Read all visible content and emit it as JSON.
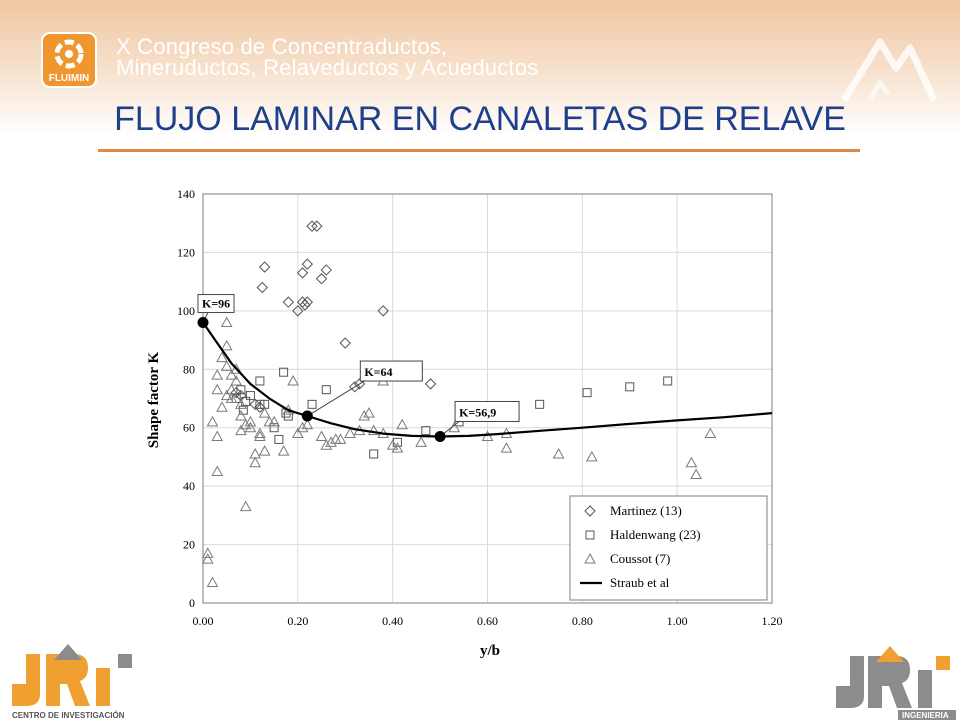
{
  "header": {
    "conference_line1": "X Congreso de Concentraductos,",
    "conference_line2": "Mineruductos, Relaveductos y Acueductos",
    "fluimin_logo_text": "FLUIMIN"
  },
  "slide": {
    "title": "FLUJO LAMINAR EN CANALETAS DE RELAVE"
  },
  "footer": {
    "left_logo_text": "JRI",
    "left_logo_caption": "CENTRO DE INVESTIGACIÓN",
    "right_logo_text": "JRI",
    "right_logo_caption": "INGENIERIA"
  },
  "colors": {
    "title": "#1d3f8c",
    "accent_orange": "#e08a46",
    "fluimin_orange": "#f0962e",
    "jri_orange": "#f0a030",
    "jri_gray": "#8c8c8c",
    "markers": "#555555"
  },
  "chart_data": {
    "type": "scatter",
    "xlabel": "y/b",
    "ylabel": "Shape factor K",
    "xlim": [
      0,
      1.2
    ],
    "ylim": [
      0,
      140
    ],
    "xticks": [
      "0.00",
      "0.20",
      "0.40",
      "0.60",
      "0.80",
      "1.00",
      "1.20"
    ],
    "yticks": [
      "0",
      "20",
      "40",
      "60",
      "80",
      "100",
      "120",
      "140"
    ],
    "grid": true,
    "legend_position": "bottom-right",
    "series": [
      {
        "name": "Martinez (13)",
        "marker": "diamond",
        "points": [
          [
            0.13,
            115
          ],
          [
            0.125,
            108
          ],
          [
            0.18,
            103
          ],
          [
            0.2,
            100
          ],
          [
            0.21,
            103
          ],
          [
            0.215,
            102
          ],
          [
            0.22,
            103
          ],
          [
            0.21,
            113
          ],
          [
            0.22,
            116
          ],
          [
            0.23,
            129
          ],
          [
            0.24,
            129
          ],
          [
            0.25,
            111
          ],
          [
            0.26,
            114
          ],
          [
            0.3,
            89
          ],
          [
            0.32,
            74
          ],
          [
            0.33,
            75
          ],
          [
            0.38,
            100
          ],
          [
            0.48,
            75
          ],
          [
            0.07,
            72
          ],
          [
            0.08,
            71
          ],
          [
            0.11,
            68
          ],
          [
            0.12,
            67
          ]
        ]
      },
      {
        "name": "Haldenwang (23)",
        "marker": "square",
        "points": [
          [
            0.07,
            70
          ],
          [
            0.08,
            73
          ],
          [
            0.085,
            66
          ],
          [
            0.09,
            69
          ],
          [
            0.1,
            71
          ],
          [
            0.12,
            76
          ],
          [
            0.12,
            68
          ],
          [
            0.13,
            68
          ],
          [
            0.15,
            60
          ],
          [
            0.16,
            56
          ],
          [
            0.17,
            79
          ],
          [
            0.175,
            65
          ],
          [
            0.18,
            64
          ],
          [
            0.23,
            68
          ],
          [
            0.26,
            73
          ],
          [
            0.36,
            51
          ],
          [
            0.41,
            55
          ],
          [
            0.47,
            59
          ],
          [
            0.54,
            62
          ],
          [
            0.6,
            64
          ],
          [
            0.71,
            68
          ],
          [
            0.81,
            72
          ],
          [
            0.9,
            74
          ],
          [
            0.98,
            76
          ]
        ]
      },
      {
        "name": "Coussot (7)",
        "marker": "triangle",
        "points": [
          [
            0.01,
            17
          ],
          [
            0.01,
            15
          ],
          [
            0.02,
            7
          ],
          [
            0.03,
            45
          ],
          [
            0.03,
            57
          ],
          [
            0.02,
            62
          ],
          [
            0.03,
            73
          ],
          [
            0.03,
            78
          ],
          [
            0.04,
            84
          ],
          [
            0.05,
            96
          ],
          [
            0.05,
            88
          ],
          [
            0.05,
            81
          ],
          [
            0.06,
            78
          ],
          [
            0.06,
            70
          ],
          [
            0.07,
            76
          ],
          [
            0.08,
            64
          ],
          [
            0.08,
            59
          ],
          [
            0.09,
            61
          ],
          [
            0.09,
            33
          ],
          [
            0.1,
            60
          ],
          [
            0.11,
            48
          ],
          [
            0.11,
            51
          ],
          [
            0.12,
            57
          ],
          [
            0.13,
            52
          ],
          [
            0.13,
            65
          ],
          [
            0.14,
            62
          ],
          [
            0.15,
            62
          ],
          [
            0.17,
            52
          ],
          [
            0.18,
            66
          ],
          [
            0.19,
            76
          ],
          [
            0.2,
            58
          ],
          [
            0.21,
            60
          ],
          [
            0.22,
            61
          ],
          [
            0.25,
            57
          ],
          [
            0.26,
            54
          ],
          [
            0.27,
            55
          ],
          [
            0.28,
            56
          ],
          [
            0.29,
            56
          ],
          [
            0.31,
            58
          ],
          [
            0.33,
            59
          ],
          [
            0.34,
            64
          ],
          [
            0.35,
            65
          ],
          [
            0.36,
            59
          ],
          [
            0.38,
            58
          ],
          [
            0.38,
            76
          ],
          [
            0.4,
            54
          ],
          [
            0.41,
            53
          ],
          [
            0.42,
            61
          ],
          [
            0.46,
            55
          ],
          [
            0.53,
            60
          ],
          [
            0.6,
            57
          ],
          [
            0.64,
            53
          ],
          [
            0.64,
            58
          ],
          [
            0.75,
            51
          ],
          [
            0.82,
            50
          ],
          [
            1.03,
            48
          ],
          [
            1.04,
            44
          ],
          [
            1.07,
            58
          ],
          [
            0.04,
            67
          ],
          [
            0.05,
            71
          ],
          [
            0.06,
            73
          ],
          [
            0.07,
            80
          ],
          [
            0.08,
            68
          ],
          [
            0.12,
            58
          ],
          [
            0.1,
            62
          ]
        ]
      },
      {
        "name": "Straub et al",
        "marker": "line",
        "points": [
          [
            0,
            96
          ],
          [
            0.03,
            89
          ],
          [
            0.06,
            82
          ],
          [
            0.1,
            75
          ],
          [
            0.14,
            70
          ],
          [
            0.18,
            66
          ],
          [
            0.22,
            64
          ],
          [
            0.27,
            61.5
          ],
          [
            0.32,
            59.5
          ],
          [
            0.38,
            58
          ],
          [
            0.44,
            57.2
          ],
          [
            0.5,
            57
          ],
          [
            0.56,
            57.2
          ],
          [
            0.62,
            57.8
          ],
          [
            0.7,
            58.8
          ],
          [
            0.8,
            60
          ],
          [
            0.9,
            61.3
          ],
          [
            1.0,
            62.5
          ],
          [
            1.1,
            63.6
          ],
          [
            1.2,
            65
          ]
        ]
      }
    ],
    "annotations": [
      {
        "label": "K=96",
        "x": 0.0,
        "y": 96
      },
      {
        "label": "K=64",
        "x": 0.22,
        "y": 64
      },
      {
        "label": "K=56,9",
        "x": 0.5,
        "y": 57
      }
    ]
  }
}
